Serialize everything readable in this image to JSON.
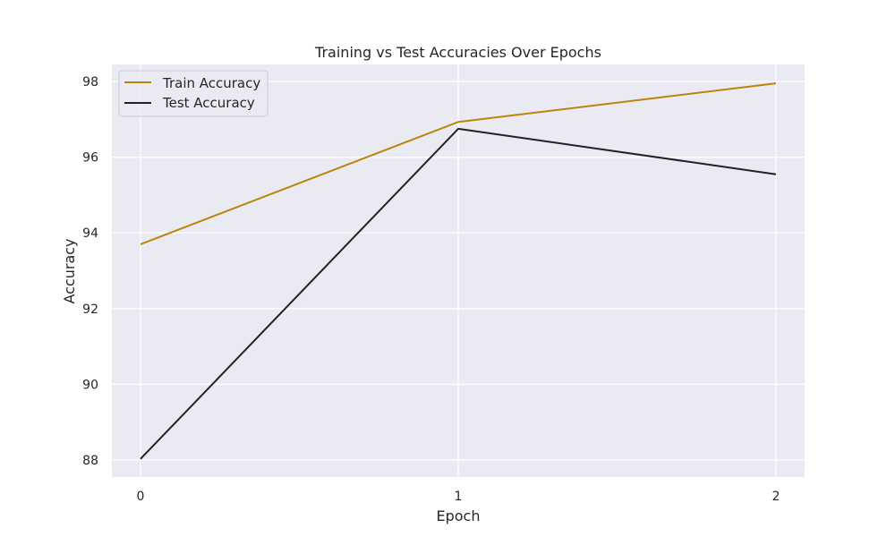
{
  "chart_data": {
    "type": "line",
    "title": "Training vs Test Accuracies Over Epochs",
    "xlabel": "Epoch",
    "ylabel": "Accuracy",
    "x": [
      0,
      1,
      2
    ],
    "xticks": [
      "0",
      "1",
      "2"
    ],
    "xlim": [
      -0.09,
      2.09
    ],
    "yticks": [
      88,
      90,
      92,
      94,
      96,
      98
    ],
    "ylim": [
      87.55,
      98.45
    ],
    "grid": true,
    "legend_position": "top-left",
    "background_color": "#EAEAF2",
    "grid_color": "#FFFFFF",
    "series": [
      {
        "name": "Train Accuracy",
        "color": "#B8860B",
        "values": [
          93.7,
          96.93,
          97.95
        ]
      },
      {
        "name": "Test Accuracy",
        "color": "#222222",
        "values": [
          88.03,
          96.75,
          95.55
        ]
      }
    ]
  }
}
